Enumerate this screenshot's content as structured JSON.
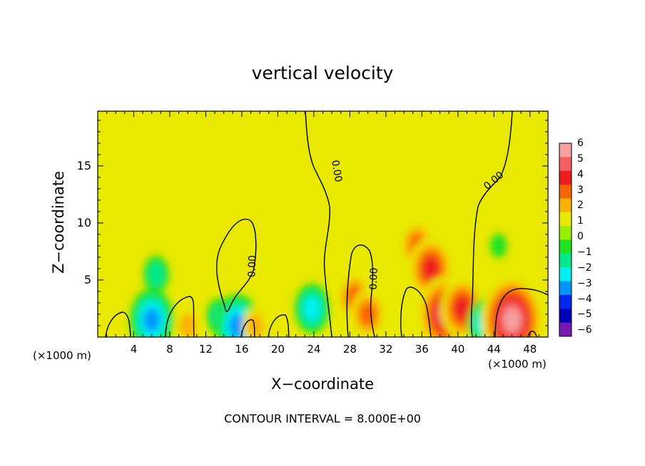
{
  "chart_data": {
    "type": "heatmap",
    "title": "vertical velocity",
    "xlabel": "X−coordinate",
    "ylabel": "Z−coordinate",
    "x_unit_left": "(×1000 m)",
    "x_unit_right": "(×1000 m)",
    "footer": "CONTOUR INTERVAL = 8.000E+00",
    "xlim": [
      0,
      50
    ],
    "ylim": [
      0,
      19.8
    ],
    "x_ticks": [
      "4",
      "8",
      "12",
      "16",
      "20",
      "24",
      "28",
      "32",
      "36",
      "40",
      "44",
      "48"
    ],
    "x_tick_values": [
      4,
      8,
      12,
      16,
      20,
      24,
      28,
      32,
      36,
      40,
      44,
      48
    ],
    "y_ticks": [
      "5",
      "10",
      "15"
    ],
    "y_tick_values": [
      5,
      10,
      15
    ],
    "colorbar": {
      "labels": [
        "6",
        "5",
        "4",
        "3",
        "2",
        "1",
        "0",
        "−1",
        "−2",
        "−3",
        "−4",
        "−5",
        "−6"
      ],
      "values": [
        6,
        5,
        4,
        3,
        2,
        1,
        0,
        -1,
        -2,
        -3,
        -4,
        -5,
        -6
      ],
      "colors": [
        "#f7a0a0",
        "#f46060",
        "#ee1c1c",
        "#f86400",
        "#fdb000",
        "#e8e800",
        "#96f000",
        "#20e420",
        "#00e88c",
        "#00f0f0",
        "#0096ff",
        "#0028f0",
        "#0000b4",
        "#7818b4"
      ]
    },
    "contour_label": "0.00",
    "features": [
      {
        "x": 6,
        "z": 1.5,
        "w": -3.5
      },
      {
        "x": 6.5,
        "z": 5.5,
        "w": -1.5
      },
      {
        "x": 10,
        "z": 1,
        "w": 1.5
      },
      {
        "x": 13.5,
        "z": 1.8,
        "w": -1.5
      },
      {
        "x": 15.5,
        "z": 1,
        "w": -4
      },
      {
        "x": 17.5,
        "z": 1,
        "w": 2
      },
      {
        "x": 23.8,
        "z": 2.5,
        "w": -2.5
      },
      {
        "x": 28.5,
        "z": 3.5,
        "w": 2.5
      },
      {
        "x": 30,
        "z": 2,
        "w": 2.5
      },
      {
        "x": 35.5,
        "z": 8,
        "w": 2.5
      },
      {
        "x": 37,
        "z": 6,
        "w": 4
      },
      {
        "x": 38.5,
        "z": 2,
        "w": 4.5
      },
      {
        "x": 40.5,
        "z": 2.5,
        "w": 3.5
      },
      {
        "x": 35,
        "z": 12,
        "w": 0.8
      },
      {
        "x": 43,
        "z": 1.2,
        "w": -2.5
      },
      {
        "x": 46,
        "z": 1.5,
        "w": 5.5
      },
      {
        "x": 44.5,
        "z": 8,
        "w": -1.2
      }
    ]
  }
}
